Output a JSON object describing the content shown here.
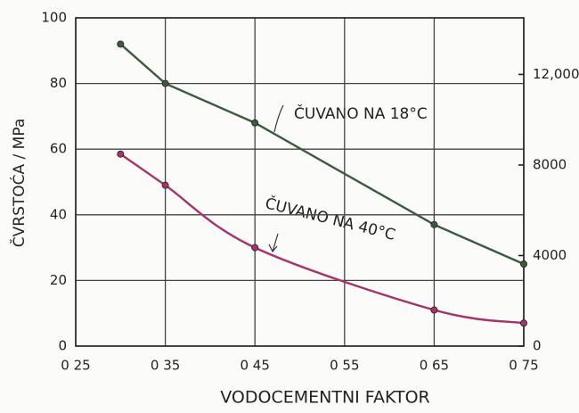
{
  "chart_data": {
    "type": "line",
    "xlabel": "VODOCEMENTNI FAKTOR",
    "ylabel": "ČVRSTOĆA / MPa",
    "xlim": [
      0.25,
      0.75
    ],
    "xticks": [
      {
        "value": 0.25,
        "label": "0 25"
      },
      {
        "value": 0.35,
        "label": "0 35"
      },
      {
        "value": 0.45,
        "label": "0 45"
      },
      {
        "value": 0.55,
        "label": "0 55"
      },
      {
        "value": 0.65,
        "label": "0 65"
      },
      {
        "value": 0.75,
        "label": "0 75"
      }
    ],
    "ylim": [
      0,
      100
    ],
    "yticks": [
      0,
      20,
      40,
      60,
      80,
      100
    ],
    "y2lim": [
      0,
      14500
    ],
    "y2ticks": [
      0,
      4000,
      8000,
      {
        "value": 12000,
        "label": "12,000"
      }
    ],
    "grid": true,
    "series": [
      {
        "name": "ČUVANO NA 18°C",
        "color": "#3d5a40",
        "x": [
          0.3,
          0.35,
          0.45,
          0.65,
          0.75
        ],
        "values": [
          92,
          80,
          68,
          37,
          25
        ]
      },
      {
        "name": "ČUVANO NA 40°C",
        "color": "#a8326a",
        "x": [
          0.3,
          0.35,
          0.45,
          0.65,
          0.75
        ],
        "values": [
          58.5,
          49,
          30,
          11,
          7
        ]
      }
    ]
  }
}
